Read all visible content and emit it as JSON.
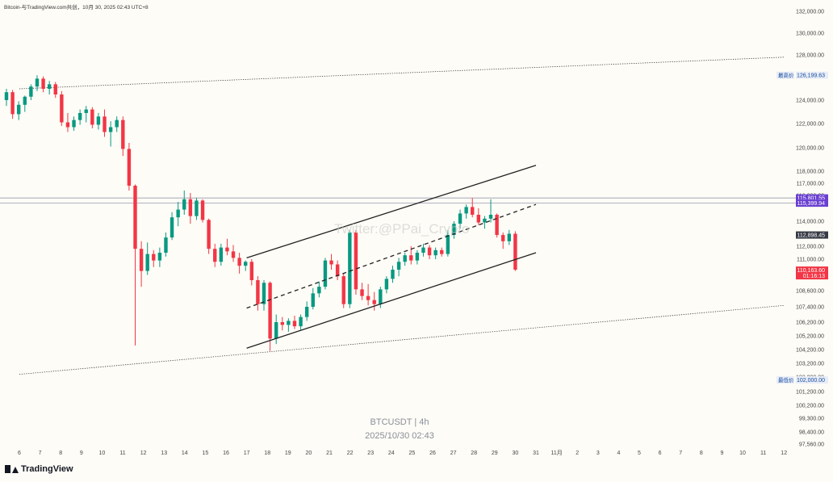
{
  "header": {
    "text": "Bitcoin-与TradingView.com共创，10月 30, 2025 02:43 UTC+8"
  },
  "watermark": "Twitter:@PPai_Crypto",
  "symbol_label": "BTCUSDT | 4h",
  "date_label": "2025/10/30 02:43",
  "brand": "TradingView",
  "icons": {
    "brand_logo": "tradingview-logo-icon"
  },
  "colors": {
    "bull": "#089981",
    "bear": "#f23645",
    "background": "#fdfcf6",
    "price_badge": "#f23645",
    "hl_badge": "#6a3fd1"
  },
  "chart_data": {
    "type": "candlestick",
    "timeframe": "4h",
    "y_ticks": [
      "132,000.00",
      "130,000.00",
      "128,000.00",
      "124,000.00",
      "122,000.00",
      "120,000.00",
      "118,000.00",
      "117,000.00",
      "116,000.00",
      "114,000.00",
      "112,000.00",
      "111,000.00",
      "108,600.00",
      "107,400.00",
      "106,200.00",
      "105,200.00",
      "104,200.00",
      "103,200.00",
      "102,200.00",
      "101,200.00",
      "100,200.00",
      "99,300.00",
      "98,400.00",
      "97,560.00"
    ],
    "x_ticks": [
      "6",
      "7",
      "8",
      "9",
      "10",
      "11",
      "12",
      "13",
      "14",
      "15",
      "16",
      "17",
      "18",
      "19",
      "20",
      "21",
      "22",
      "23",
      "24",
      "25",
      "26",
      "27",
      "28",
      "29",
      "30",
      "31",
      "11月",
      "2",
      "3",
      "4",
      "5",
      "6",
      "7",
      "8",
      "9",
      "10",
      "11",
      "12"
    ],
    "price_labels": [
      {
        "label": "最高价",
        "value": "126,199.63"
      },
      {
        "label": "",
        "value": "115,801.55"
      },
      {
        "label": "",
        "value": "115,399.94"
      },
      {
        "label": "",
        "value": "112,898.45"
      },
      {
        "label": "",
        "value": "110,163.60"
      },
      {
        "label": "最低价",
        "value": "102,000.00"
      }
    ],
    "countdown": "01:16:13",
    "horizontal_lines": [
      115801.55,
      115399.94
    ],
    "channel": {
      "upper": [
        [
          "2025-10-17",
          111100
        ],
        [
          "2025-10-31",
          118500
        ]
      ],
      "middle": [
        [
          "2025-10-17",
          107300
        ],
        [
          "2025-10-31",
          115300
        ]
      ],
      "lower": [
        [
          "2025-10-17",
          104300
        ],
        [
          "2025-10-31",
          111500
        ]
      ]
    },
    "long_trendlines": {
      "upper": [
        [
          "2025-10-06",
          125000
        ],
        [
          "2025-11-12",
          127800
        ]
      ],
      "lower": [
        [
          "2025-10-06",
          102400
        ],
        [
          "2025-11-12",
          107500
        ]
      ]
    },
    "candles": [
      [
        124000,
        125000,
        123500,
        124700
      ],
      [
        124700,
        124900,
        122400,
        122800
      ],
      [
        122800,
        123900,
        122300,
        123600
      ],
      [
        123600,
        124400,
        123000,
        124300
      ],
      [
        124300,
        125400,
        124000,
        125200
      ],
      [
        125200,
        126200,
        124800,
        125900
      ],
      [
        125900,
        126100,
        124700,
        125000
      ],
      [
        125000,
        125700,
        124500,
        125400
      ],
      [
        125400,
        125600,
        124200,
        124500
      ],
      [
        124500,
        124800,
        121800,
        122100
      ],
      [
        122100,
        122900,
        121300,
        121700
      ],
      [
        121700,
        122600,
        121400,
        122300
      ],
      [
        122300,
        123200,
        121900,
        122900
      ],
      [
        122900,
        123500,
        122100,
        123200
      ],
      [
        123200,
        123400,
        121600,
        121900
      ],
      [
        121900,
        122900,
        121500,
        122600
      ],
      [
        122600,
        123200,
        120900,
        121300
      ],
      [
        121300,
        122200,
        120100,
        121700
      ],
      [
        121700,
        122600,
        121300,
        122300
      ],
      [
        122300,
        122600,
        119300,
        119900
      ],
      [
        119900,
        120400,
        116400,
        116800
      ],
      [
        116800,
        116900,
        104500,
        111800
      ],
      [
        111800,
        112400,
        108900,
        110100
      ],
      [
        110100,
        112300,
        109800,
        111400
      ],
      [
        111400,
        111700,
        110400,
        110900
      ],
      [
        110900,
        111900,
        110400,
        111500
      ],
      [
        111500,
        113100,
        111200,
        112700
      ],
      [
        112700,
        114700,
        112500,
        114300
      ],
      [
        114300,
        115500,
        113600,
        114900
      ],
      [
        114900,
        116400,
        114500,
        115700
      ],
      [
        115700,
        116200,
        113800,
        114400
      ],
      [
        114400,
        115800,
        114100,
        115600
      ],
      [
        115600,
        115700,
        113900,
        114100
      ],
      [
        114100,
        114200,
        111400,
        111800
      ],
      [
        111800,
        112200,
        110400,
        110800
      ],
      [
        110800,
        112200,
        110500,
        111900
      ],
      [
        111900,
        112600,
        111300,
        111600
      ],
      [
        111600,
        112100,
        110800,
        111100
      ],
      [
        111100,
        111500,
        109900,
        110500
      ],
      [
        110500,
        110900,
        110100,
        110800
      ],
      [
        110800,
        111000,
        109000,
        109400
      ],
      [
        109400,
        109700,
        107100,
        107600
      ],
      [
        107600,
        109400,
        107100,
        109200
      ],
      [
        109200,
        109300,
        104100,
        105000
      ],
      [
        105000,
        106800,
        104600,
        106200
      ],
      [
        106200,
        106600,
        105600,
        106000
      ],
      [
        106000,
        106500,
        105500,
        106300
      ],
      [
        106300,
        106700,
        105700,
        105900
      ],
      [
        105900,
        106800,
        105600,
        106600
      ],
      [
        106600,
        107800,
        106300,
        107400
      ],
      [
        107400,
        108800,
        107200,
        108400
      ],
      [
        108400,
        109300,
        108100,
        108900
      ],
      [
        108900,
        111100,
        108700,
        110900
      ],
      [
        110900,
        111400,
        110200,
        110600
      ],
      [
        110600,
        110900,
        109400,
        109700
      ],
      [
        109700,
        109900,
        107300,
        107600
      ],
      [
        107600,
        113300,
        107300,
        113100
      ],
      [
        113100,
        113300,
        108300,
        108700
      ],
      [
        108700,
        109200,
        107900,
        108200
      ],
      [
        108200,
        109100,
        107500,
        107900
      ],
      [
        107900,
        108500,
        107100,
        107600
      ],
      [
        107600,
        108900,
        107300,
        108700
      ],
      [
        108700,
        109700,
        108400,
        109500
      ],
      [
        109500,
        110500,
        109200,
        110200
      ],
      [
        110200,
        111100,
        109700,
        110800
      ],
      [
        110800,
        111500,
        110500,
        111300
      ],
      [
        111300,
        112000,
        110600,
        110900
      ],
      [
        110900,
        111700,
        110600,
        111500
      ],
      [
        111500,
        112200,
        111200,
        111900
      ],
      [
        111900,
        112100,
        111000,
        111300
      ],
      [
        111300,
        111900,
        111000,
        111700
      ],
      [
        111700,
        111900,
        111200,
        111400
      ],
      [
        111400,
        113300,
        111200,
        112900
      ],
      [
        112900,
        114000,
        112600,
        113800
      ],
      [
        113800,
        114900,
        113400,
        114600
      ],
      [
        114600,
        115300,
        114200,
        115100
      ],
      [
        115100,
        115800,
        114300,
        114500
      ],
      [
        114500,
        115000,
        113700,
        113900
      ],
      [
        113900,
        114400,
        113400,
        114200
      ],
      [
        114200,
        115700,
        113900,
        114500
      ],
      [
        114500,
        114600,
        112700,
        112900
      ],
      [
        112900,
        113100,
        111800,
        112400
      ],
      [
        112400,
        113300,
        112100,
        113000
      ],
      [
        113000,
        113200,
        110100,
        110200
      ]
    ]
  }
}
